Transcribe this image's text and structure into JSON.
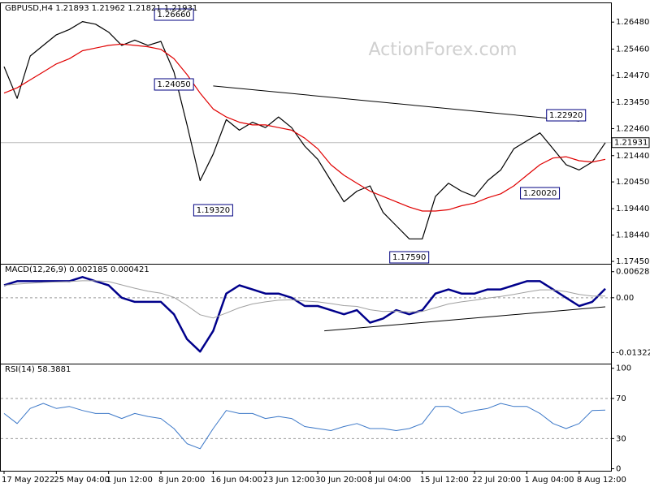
{
  "watermark": "ActionForex.com",
  "chart_data": [
    {
      "type": "line",
      "title": "GBPUSD,H4  1.21893 1.21962 1.21821 1.21931",
      "ylim": [
        1.1736,
        1.2716
      ],
      "yticks": [
        {
          "value": 1.2648,
          "label": "1.26480"
        },
        {
          "value": 1.2546,
          "label": "1.25460"
        },
        {
          "value": 1.2447,
          "label": "1.24470"
        },
        {
          "value": 1.2345,
          "label": "1.23450"
        },
        {
          "value": 1.2246,
          "label": "1.22460"
        },
        {
          "value": 1.2144,
          "label": "1.21440"
        },
        {
          "value": 1.2045,
          "label": "1.20450"
        },
        {
          "value": 1.1944,
          "label": "1.19440"
        },
        {
          "value": 1.1844,
          "label": "1.18440"
        },
        {
          "value": 1.1745,
          "label": "1.17450"
        }
      ],
      "last_price": {
        "value": 1.21931,
        "label": "1.21931"
      },
      "annotations": [
        "1.26660",
        "1.24050",
        "1.19320",
        "1.17590",
        "1.22920",
        "1.20020"
      ],
      "trendline": {
        "x": [
          16,
          44
        ],
        "values": [
          1.2407,
          1.2274
        ]
      },
      "series": [
        {
          "name": "GBPUSD",
          "color": "#000000",
          "values": [
            1.248,
            1.236,
            1.252,
            1.256,
            1.26,
            1.262,
            1.265,
            1.264,
            1.261,
            1.256,
            1.258,
            1.256,
            1.2575,
            1.246,
            1.226,
            1.205,
            1.215,
            1.228,
            1.224,
            1.227,
            1.225,
            1.229,
            1.225,
            1.218,
            1.213,
            1.205,
            1.197,
            1.201,
            1.203,
            1.193,
            1.188,
            1.183,
            1.183,
            1.199,
            1.204,
            1.201,
            1.199,
            1.205,
            1.209,
            1.217,
            1.22,
            1.223,
            1.217,
            1.211,
            1.209,
            1.212,
            1.2193
          ]
        },
        {
          "name": "MA",
          "color": "#e00000",
          "values": [
            1.238,
            1.24,
            1.243,
            1.246,
            1.249,
            1.251,
            1.254,
            1.255,
            1.256,
            1.2565,
            1.256,
            1.2555,
            1.2545,
            1.251,
            1.245,
            1.238,
            1.232,
            1.229,
            1.227,
            1.226,
            1.226,
            1.225,
            1.224,
            1.221,
            1.217,
            1.211,
            1.207,
            1.204,
            1.201,
            1.199,
            1.197,
            1.195,
            1.1935,
            1.1935,
            1.194,
            1.1955,
            1.1965,
            1.1985,
            1.2,
            1.203,
            1.207,
            1.211,
            1.2135,
            1.214,
            1.2125,
            1.212,
            1.213
          ]
        }
      ]
    },
    {
      "type": "line",
      "title": "MACD(12,26,9) 0.002185 0.000421",
      "ylim": [
        -0.0159,
        0.0078
      ],
      "yticks": [
        -0.013223,
        {
          "value": 0,
          "label": "0.00"
        },
        0.006285
      ],
      "dashed_levels": true,
      "trendline": {
        "x": [
          24.5,
          46
        ],
        "values": [
          -0.008,
          -0.0022
        ]
      },
      "series": [
        {
          "name": "MACD",
          "color": "#00008b",
          "width": 2.5,
          "values": [
            0.003,
            0.004,
            0.004,
            0.004,
            0.004,
            0.004,
            0.005,
            0.004,
            0.003,
            0.0,
            -0.001,
            -0.001,
            -0.001,
            -0.004,
            -0.01,
            -0.013,
            -0.008,
            0.001,
            0.003,
            0.002,
            0.001,
            0.001,
            0.0,
            -0.002,
            -0.002,
            -0.003,
            -0.004,
            -0.003,
            -0.006,
            -0.005,
            -0.003,
            -0.004,
            -0.003,
            0.001,
            0.002,
            0.001,
            0.001,
            0.002,
            0.002,
            0.003,
            0.004,
            0.004,
            0.002,
            0.0,
            -0.002,
            -0.001,
            0.002185
          ]
        },
        {
          "name": "Signal",
          "color": "#a0a0a0",
          "width": 1,
          "values": [
            0.003,
            0.0033,
            0.0035,
            0.0037,
            0.0038,
            0.0039,
            0.0041,
            0.0041,
            0.0039,
            0.0031,
            0.0023,
            0.0016,
            0.0011,
            0.0001,
            -0.0019,
            -0.0041,
            -0.0049,
            -0.0037,
            -0.0024,
            -0.0015,
            -0.001,
            -0.0006,
            -0.0005,
            -0.0008,
            -0.001,
            -0.0014,
            -0.0019,
            -0.0021,
            -0.0029,
            -0.0033,
            -0.0032,
            -0.0034,
            -0.0033,
            -0.0024,
            -0.0015,
            -0.001,
            -0.0006,
            -0.0001,
            0.0003,
            0.0008,
            0.0014,
            0.0019,
            0.0019,
            0.0015,
            0.0008,
            0.0004,
            0.000421
          ]
        }
      ]
    },
    {
      "type": "line",
      "title": "RSI(14) 58.3881",
      "ylim": [
        -2,
        103
      ],
      "yticks": [
        0,
        30,
        70,
        100
      ],
      "dashed_levels": true,
      "categories": [
        "17 May 2022",
        null,
        null,
        null,
        "25 May 04:00",
        null,
        null,
        null,
        "1 Jun 12:00",
        null,
        null,
        null,
        "8 Jun 20:00",
        null,
        null,
        null,
        "16 Jun 04:00",
        null,
        null,
        null,
        "23 Jun 12:00",
        null,
        null,
        null,
        "30 Jun 20:00",
        null,
        null,
        null,
        "8 Jul 04:00",
        null,
        null,
        null,
        "15 Jul 12:00",
        null,
        null,
        null,
        "22 Jul 20:00",
        null,
        null,
        null,
        "1 Aug 04:00",
        null,
        null,
        null,
        "8 Aug 12:00",
        null,
        null
      ],
      "series": [
        {
          "name": "RSI",
          "color": "#3c78c8",
          "width": 1,
          "values": [
            55,
            45,
            60,
            65,
            60,
            62,
            58,
            55,
            55,
            50,
            55,
            52,
            50,
            40,
            25,
            20,
            40,
            58,
            55,
            55,
            50,
            52,
            50,
            42,
            40,
            38,
            42,
            45,
            40,
            40,
            38,
            40,
            45,
            62,
            62,
            55,
            58,
            60,
            65,
            62,
            62,
            55,
            45,
            40,
            45,
            58,
            58.3881
          ]
        }
      ]
    }
  ]
}
